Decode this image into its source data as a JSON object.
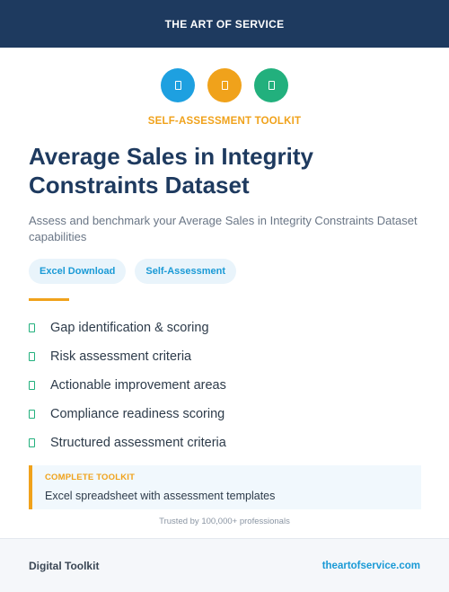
{
  "header": {
    "brand": "THE ART OF SERVICE"
  },
  "icons": [
    {
      "name": "document-icon",
      "color": "#1ea0e0"
    },
    {
      "name": "document-icon",
      "color": "#f0a21b"
    },
    {
      "name": "document-icon",
      "color": "#22b07d"
    }
  ],
  "kicker": "SELF-ASSESSMENT TOOLKIT",
  "title": {
    "line1": "Average Sales in Integrity",
    "line2": "Constraints Dataset"
  },
  "subtitle": "Assess and benchmark your Average Sales in Integrity Constraints Dataset capabilities",
  "tags": [
    "Excel Download",
    "Self-Assessment"
  ],
  "features": [
    "Gap identification & scoring",
    "Risk assessment criteria",
    "Actionable improvement areas",
    "Compliance readiness scoring",
    "Structured assessment criteria"
  ],
  "toolkit": {
    "label": "COMPLETE TOOLKIT",
    "description": "Excel spreadsheet with assessment templates"
  },
  "trusted": "Trusted by 100,000+ professionals",
  "footer": {
    "left": "Digital Toolkit",
    "right": "theartofservice.com"
  }
}
